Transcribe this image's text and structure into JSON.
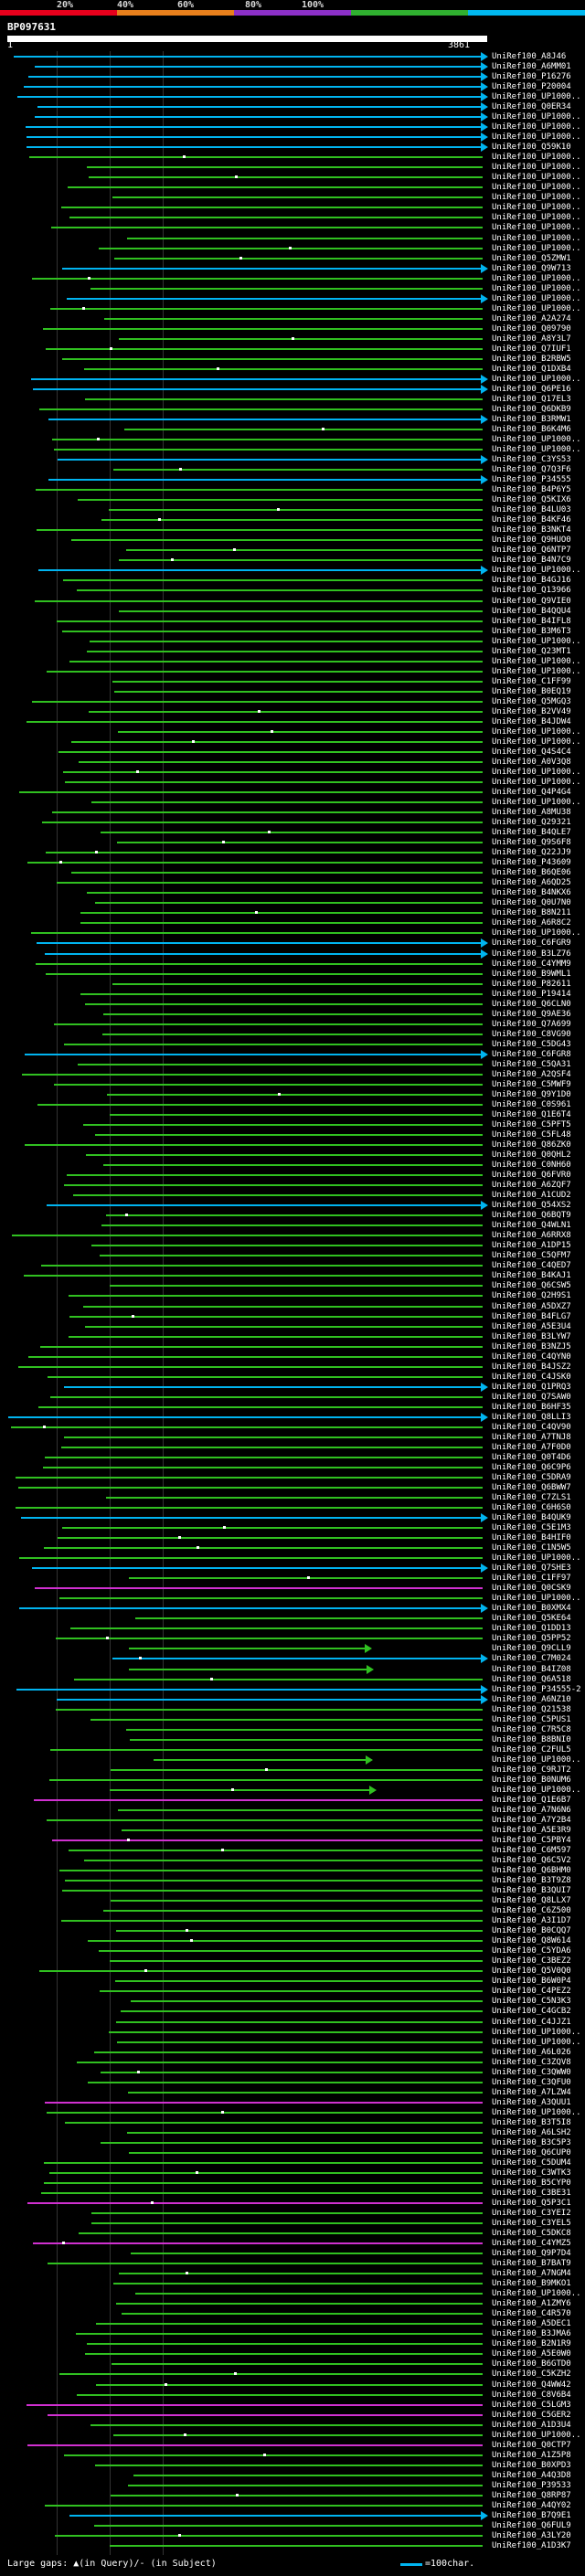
{
  "percent_scale": {
    "labels": [
      "20%",
      "40%",
      "60%",
      "80%",
      "100%"
    ],
    "colors": [
      "#e8001c",
      "#e8801c",
      "#8c30c8",
      "#30b030",
      "#00b8f0"
    ]
  },
  "query": {
    "id": "BP097631",
    "start": "1",
    "end": "3861"
  },
  "hits": [
    {
      "label": "UniRef100_A8J46",
      "kind": "top"
    },
    {
      "label": "UniRef100_A6MM01",
      "kind": "top"
    },
    {
      "label": "UniRef100_P16276",
      "kind": "top"
    },
    {
      "label": "UniRef100_P20004",
      "kind": "top"
    },
    {
      "label": "UniRef100_UP1000..",
      "kind": "top"
    },
    {
      "label": "UniRef100_Q0ER34",
      "kind": "top"
    },
    {
      "label": "UniRef100_UP1000..",
      "kind": "top"
    },
    {
      "label": "UniRef100_UP1000..",
      "kind": "top"
    },
    {
      "label": "UniRef100_UP1000..",
      "kind": "top"
    },
    {
      "label": "UniRef100_Q59K10",
      "kind": "top"
    },
    {
      "label": "UniRef100_UP1000..",
      "kind": "g"
    },
    {
      "label": "UniRef100_UP1000..",
      "kind": "g"
    },
    {
      "label": "UniRef100_UP1000..",
      "kind": "g"
    },
    {
      "label": "UniRef100_UP1000..",
      "kind": "g"
    },
    {
      "label": "UniRef100_UP1000..",
      "kind": "g"
    },
    {
      "label": "UniRef100_UP1000..",
      "kind": "g"
    },
    {
      "label": "UniRef100_UP1000..",
      "kind": "g"
    },
    {
      "label": "UniRef100_UP1000..",
      "kind": "g"
    },
    {
      "label": "UniRef100_UP1000..",
      "kind": "g"
    },
    {
      "label": "UniRef100_UP1000..",
      "kind": "g"
    },
    {
      "label": "UniRef100_Q5ZMW1",
      "kind": "g"
    },
    {
      "label": "UniRef100_Q9W713",
      "kind": "top"
    },
    {
      "label": "UniRef100_UP1000..",
      "kind": "g"
    },
    {
      "label": "UniRef100_UP1000..",
      "kind": "g"
    },
    {
      "label": "UniRef100_UP1000..",
      "kind": "top"
    },
    {
      "label": "UniRef100_UP1000..",
      "kind": "g"
    },
    {
      "label": "UniRef100_A2A274",
      "kind": "g"
    },
    {
      "label": "UniRef100_Q09790",
      "kind": "g"
    },
    {
      "label": "UniRef100_A8Y3L7",
      "kind": "g"
    },
    {
      "label": "UniRef100_Q7IUF1",
      "kind": "g"
    },
    {
      "label": "UniRef100_B2RBW5",
      "kind": "g"
    },
    {
      "label": "UniRef100_Q1DXB4",
      "kind": "g"
    },
    {
      "label": "UniRef100_UP1000..",
      "kind": "top"
    },
    {
      "label": "UniRef100_Q6PE16",
      "kind": "top"
    },
    {
      "label": "UniRef100_Q17EL3",
      "kind": "g"
    },
    {
      "label": "UniRef100_Q6DKB9",
      "kind": "g"
    },
    {
      "label": "UniRef100_B3RMW1",
      "kind": "top"
    },
    {
      "label": "UniRef100_B6K4M6",
      "kind": "g"
    },
    {
      "label": "UniRef100_UP1000..",
      "kind": "g"
    },
    {
      "label": "UniRef100_UP1000..",
      "kind": "g"
    },
    {
      "label": "UniRef100_C3YS53",
      "kind": "top"
    },
    {
      "label": "UniRef100_Q7Q3F6",
      "kind": "g"
    },
    {
      "label": "UniRef100_P34555",
      "kind": "top"
    },
    {
      "label": "UniRef100_B4P6Y5",
      "kind": "g"
    },
    {
      "label": "UniRef100_Q5KIX6",
      "kind": "g"
    },
    {
      "label": "UniRef100_B4LU03",
      "kind": "g"
    },
    {
      "label": "UniRef100_B4KF46",
      "kind": "g"
    },
    {
      "label": "UniRef100_B3NKT4",
      "kind": "g"
    },
    {
      "label": "UniRef100_Q9HUO0",
      "kind": "g"
    },
    {
      "label": "UniRef100_Q6NTP7",
      "kind": "g"
    },
    {
      "label": "UniRef100_B4N7C9",
      "kind": "g"
    },
    {
      "label": "UniRef100_UP1000..",
      "kind": "top"
    },
    {
      "label": "UniRef100_B4GJ16",
      "kind": "g"
    },
    {
      "label": "UniRef100_Q13966",
      "kind": "g"
    },
    {
      "label": "UniRef100_Q9VIE0",
      "kind": "g"
    },
    {
      "label": "UniRef100_B4QQU4",
      "kind": "g"
    },
    {
      "label": "UniRef100_B4IFL8",
      "kind": "g"
    },
    {
      "label": "UniRef100_B3M6T3",
      "kind": "g"
    },
    {
      "label": "UniRef100_UP1000..",
      "kind": "g"
    },
    {
      "label": "UniRef100_Q23MT1",
      "kind": "g"
    },
    {
      "label": "UniRef100_UP1000..",
      "kind": "g"
    },
    {
      "label": "UniRef100_UP1000..",
      "kind": "g"
    },
    {
      "label": "UniRef100_C1FF99",
      "kind": "g"
    },
    {
      "label": "UniRef100_B0EQ19",
      "kind": "g"
    },
    {
      "label": "UniRef100_Q5MGQ3",
      "kind": "g"
    },
    {
      "label": "UniRef100_B2VV49",
      "kind": "g"
    },
    {
      "label": "UniRef100_B4JDW4",
      "kind": "g"
    },
    {
      "label": "UniRef100_UP1000..",
      "kind": "g"
    },
    {
      "label": "UniRef100_UP1000..",
      "kind": "g"
    },
    {
      "label": "UniRef100_Q4S4C4",
      "kind": "g"
    },
    {
      "label": "UniRef100_A0V3Q8",
      "kind": "g"
    },
    {
      "label": "UniRef100_UP1000..",
      "kind": "g"
    },
    {
      "label": "UniRef100_UP1000..",
      "kind": "g"
    },
    {
      "label": "UniRef100_Q4P4G4",
      "kind": "g"
    },
    {
      "label": "UniRef100_UP1000..",
      "kind": "g"
    },
    {
      "label": "UniRef100_A8MU38",
      "kind": "g"
    },
    {
      "label": "UniRef100_Q29321",
      "kind": "g"
    },
    {
      "label": "UniRef100_B4QLE7",
      "kind": "g"
    },
    {
      "label": "UniRef100_Q9S6F8",
      "kind": "g"
    },
    {
      "label": "UniRef100_Q22JJ9",
      "kind": "g"
    },
    {
      "label": "UniRef100_P43609",
      "kind": "g"
    },
    {
      "label": "UniRef100_B6QE06",
      "kind": "g"
    },
    {
      "label": "UniRef100_A6QD25",
      "kind": "g"
    },
    {
      "label": "UniRef100_B4NKX6",
      "kind": "g"
    },
    {
      "label": "UniRef100_Q0U7N0",
      "kind": "g"
    },
    {
      "label": "UniRef100_B8N211",
      "kind": "g"
    },
    {
      "label": "UniRef100_A6R8C2",
      "kind": "g"
    },
    {
      "label": "UniRef100_UP1000..",
      "kind": "g"
    },
    {
      "label": "UniRef100_C6FGR9",
      "kind": "top"
    },
    {
      "label": "UniRef100_B3LZ76",
      "kind": "top"
    },
    {
      "label": "UniRef100_C4YMM9",
      "kind": "g"
    },
    {
      "label": "UniRef100_B9WML1",
      "kind": "g"
    },
    {
      "label": "UniRef100_P82611",
      "kind": "g"
    },
    {
      "label": "UniRef100_P19414",
      "kind": "g"
    },
    {
      "label": "UniRef100_Q6CLN0",
      "kind": "g"
    },
    {
      "label": "UniRef100_Q9AE36",
      "kind": "g"
    },
    {
      "label": "UniRef100_Q7A699",
      "kind": "g"
    },
    {
      "label": "UniRef100_C8VG90",
      "kind": "g"
    },
    {
      "label": "UniRef100_C5DG43",
      "kind": "g"
    },
    {
      "label": "UniRef100_C6FGR8",
      "kind": "top"
    },
    {
      "label": "UniRef100_C5QA31",
      "kind": "g"
    },
    {
      "label": "UniRef100_A2QSF4",
      "kind": "g"
    },
    {
      "label": "UniRef100_C5MWF9",
      "kind": "g"
    },
    {
      "label": "UniRef100_Q9Y1D0",
      "kind": "g"
    },
    {
      "label": "UniRef100_C0S961",
      "kind": "g"
    },
    {
      "label": "UniRef100_Q1E6T4",
      "kind": "g"
    },
    {
      "label": "UniRef100_C5PFT5",
      "kind": "g"
    },
    {
      "label": "UniRef100_C5FL48",
      "kind": "g"
    },
    {
      "label": "UniRef100_Q86ZK0",
      "kind": "g"
    },
    {
      "label": "UniRef100_Q0QHL2",
      "kind": "g"
    },
    {
      "label": "UniRef100_C0NH60",
      "kind": "g"
    },
    {
      "label": "UniRef100_Q6FVR0",
      "kind": "g"
    },
    {
      "label": "UniRef100_A6ZQF7",
      "kind": "g"
    },
    {
      "label": "UniRef100_A1CUD2",
      "kind": "g"
    },
    {
      "label": "UniRef100_Q54XS2",
      "kind": "top"
    },
    {
      "label": "UniRef100_Q6BQT9",
      "kind": "g"
    },
    {
      "label": "UniRef100_Q4WLN1",
      "kind": "g"
    },
    {
      "label": "UniRef100_A6RRX8",
      "kind": "g"
    },
    {
      "label": "UniRef100_A1DP15",
      "kind": "g"
    },
    {
      "label": "UniRef100_C5QFM7",
      "kind": "g"
    },
    {
      "label": "UniRef100_C4QED7",
      "kind": "g"
    },
    {
      "label": "UniRef100_B4KAJ1",
      "kind": "g"
    },
    {
      "label": "UniRef100_Q6CSW5",
      "kind": "g"
    },
    {
      "label": "UniRef100_Q2H9S1",
      "kind": "g"
    },
    {
      "label": "UniRef100_A5DXZ7",
      "kind": "g"
    },
    {
      "label": "UniRef100_B4FLG7",
      "kind": "g"
    },
    {
      "label": "UniRef100_A5E3U4",
      "kind": "g"
    },
    {
      "label": "UniRef100_B3LYW7",
      "kind": "g"
    },
    {
      "label": "UniRef100_B3NZJ5",
      "kind": "g"
    },
    {
      "label": "UniRef100_C4QYN0",
      "kind": "g"
    },
    {
      "label": "UniRef100_B4JSZ2",
      "kind": "g"
    },
    {
      "label": "UniRef100_C4JSK0",
      "kind": "g"
    },
    {
      "label": "UniRef100_Q1PRQ3",
      "kind": "top"
    },
    {
      "label": "UniRef100_Q7SAW0",
      "kind": "g"
    },
    {
      "label": "UniRef100_B6HF35",
      "kind": "g"
    },
    {
      "label": "UniRef100_Q8LLI3",
      "kind": "top"
    },
    {
      "label": "UniRef100_C4QV90",
      "kind": "g"
    },
    {
      "label": "UniRef100_A7TNJ8",
      "kind": "g"
    },
    {
      "label": "UniRef100_A7F0D0",
      "kind": "g"
    },
    {
      "label": "UniRef100_Q0T4D6",
      "kind": "g"
    },
    {
      "label": "UniRef100_Q6C9P6",
      "kind": "g"
    },
    {
      "label": "UniRef100_C5DRA9",
      "kind": "g"
    },
    {
      "label": "UniRef100_Q6BWW7",
      "kind": "g"
    },
    {
      "label": "UniRef100_C7ZLS1",
      "kind": "g"
    },
    {
      "label": "UniRef100_C6H6S0",
      "kind": "g"
    },
    {
      "label": "UniRef100_B4QUK9",
      "kind": "top"
    },
    {
      "label": "UniRef100_C5E1M3",
      "kind": "g"
    },
    {
      "label": "UniRef100_B4HIF0",
      "kind": "g"
    },
    {
      "label": "UniRef100_C1N5W5",
      "kind": "g"
    },
    {
      "label": "UniRef100_UP1000..",
      "kind": "g"
    },
    {
      "label": "UniRef100_Q7SHE3",
      "kind": "top"
    },
    {
      "label": "UniRef100_C1FF97",
      "kind": "g"
    },
    {
      "label": "UniRef100_Q0CSK9",
      "kind": "magenta"
    },
    {
      "label": "UniRef100_UP1000..",
      "kind": "g"
    },
    {
      "label": "UniRef100_B0XMX4",
      "kind": "top"
    },
    {
      "label": "UniRef100_Q5KE64",
      "kind": "g"
    },
    {
      "label": "UniRef100_Q1DD13",
      "kind": "g"
    },
    {
      "label": "UniRef100_Q5PP52",
      "kind": "g"
    },
    {
      "label": "UniRef100_Q9CLL9",
      "kind": "short"
    },
    {
      "label": "UniRef100_C7M024",
      "kind": "top2"
    },
    {
      "label": "UniRef100_B4IZ08",
      "kind": "short"
    },
    {
      "label": "UniRef100_Q6A518",
      "kind": "g"
    },
    {
      "label": "UniRef100_P34555-2",
      "kind": "top"
    },
    {
      "label": "UniRef100_A6NZ10",
      "kind": "top"
    },
    {
      "label": "UniRef100_Q21538",
      "kind": "g"
    },
    {
      "label": "UniRef100_C5PUS1",
      "kind": "g"
    },
    {
      "label": "UniRef100_C7R5C8",
      "kind": "g"
    },
    {
      "label": "UniRef100_B8BNI0",
      "kind": "g"
    },
    {
      "label": "UniRef100_C2FUL5",
      "kind": "g"
    },
    {
      "label": "UniRef100_UP1000..",
      "kind": "short"
    },
    {
      "label": "UniRef100_C9RJT2",
      "kind": "g"
    },
    {
      "label": "UniRef100_B0NUM6",
      "kind": "g"
    },
    {
      "label": "UniRef100_UP1000..",
      "kind": "short"
    },
    {
      "label": "UniRef100_Q1E6B7",
      "kind": "magenta"
    },
    {
      "label": "UniRef100_A7N6N6",
      "kind": "g"
    },
    {
      "label": "UniRef100_A7Y2B4",
      "kind": "g"
    },
    {
      "label": "UniRef100_A5E3R9",
      "kind": "g"
    },
    {
      "label": "UniRef100_C5PBY4",
      "kind": "magenta"
    },
    {
      "label": "UniRef100_C6M597",
      "kind": "g"
    },
    {
      "label": "UniRef100_Q6C5V2",
      "kind": "g"
    },
    {
      "label": "UniRef100_Q6BHM0",
      "kind": "g"
    },
    {
      "label": "UniRef100_B3T9Z8",
      "kind": "g"
    },
    {
      "label": "UniRef100_B3QUI7",
      "kind": "g"
    },
    {
      "label": "UniRef100_Q8LLX7",
      "kind": "g"
    },
    {
      "label": "UniRef100_C6Z500",
      "kind": "g"
    },
    {
      "label": "UniRef100_A3I1D7",
      "kind": "g"
    },
    {
      "label": "UniRef100_B0CQQ7",
      "kind": "g"
    },
    {
      "label": "UniRef100_Q8W614",
      "kind": "g"
    },
    {
      "label": "UniRef100_C5YDA6",
      "kind": "g"
    },
    {
      "label": "UniRef100_C3BEZ2",
      "kind": "g"
    },
    {
      "label": "UniRef100_Q5V0Q0",
      "kind": "g"
    },
    {
      "label": "UniRef100_B6W0P4",
      "kind": "g"
    },
    {
      "label": "UniRef100_C4PEZ2",
      "kind": "g"
    },
    {
      "label": "UniRef100_C5N3K3",
      "kind": "g"
    },
    {
      "label": "UniRef100_C4GCB2",
      "kind": "g"
    },
    {
      "label": "UniRef100_C4JJZ1",
      "kind": "g"
    },
    {
      "label": "UniRef100_UP1000..",
      "kind": "g"
    },
    {
      "label": "UniRef100_UP1000..",
      "kind": "g"
    },
    {
      "label": "UniRef100_A6L026",
      "kind": "g"
    },
    {
      "label": "UniRef100_C3ZQV8",
      "kind": "g"
    },
    {
      "label": "UniRef100_C3QWW0",
      "kind": "g"
    },
    {
      "label": "UniRef100_C3QFU0",
      "kind": "g"
    },
    {
      "label": "UniRef100_A7LZW4",
      "kind": "g"
    },
    {
      "label": "UniRef100_A3QUU1",
      "kind": "magenta"
    },
    {
      "label": "UniRef100_UP1000..",
      "kind": "g"
    },
    {
      "label": "UniRef100_B3T5I8",
      "kind": "g"
    },
    {
      "label": "UniRef100_A6LSH2",
      "kind": "g"
    },
    {
      "label": "UniRef100_B3C5P3",
      "kind": "g"
    },
    {
      "label": "UniRef100_Q6CUP0",
      "kind": "g"
    },
    {
      "label": "UniRef100_C5DUM4",
      "kind": "g"
    },
    {
      "label": "UniRef100_C3WTK3",
      "kind": "g"
    },
    {
      "label": "UniRef100_B5CYP0",
      "kind": "g"
    },
    {
      "label": "UniRef100_C3BE31",
      "kind": "g"
    },
    {
      "label": "UniRef100_Q5P3C1",
      "kind": "magenta"
    },
    {
      "label": "UniRef100_C3YEI2",
      "kind": "g"
    },
    {
      "label": "UniRef100_C3YEL5",
      "kind": "g"
    },
    {
      "label": "UniRef100_C5DKC8",
      "kind": "g"
    },
    {
      "label": "UniRef100_C4YMZ5",
      "kind": "magenta"
    },
    {
      "label": "UniRef100_Q9P7D4",
      "kind": "g"
    },
    {
      "label": "UniRef100_B7BAT9",
      "kind": "g"
    },
    {
      "label": "UniRef100_A7NGM4",
      "kind": "g"
    },
    {
      "label": "UniRef100_B9MKO1",
      "kind": "g"
    },
    {
      "label": "UniRef100_UP1000..",
      "kind": "g"
    },
    {
      "label": "UniRef100_A1ZMY6",
      "kind": "g"
    },
    {
      "label": "UniRef100_C4R570",
      "kind": "g"
    },
    {
      "label": "UniRef100_A5DEC1",
      "kind": "g"
    },
    {
      "label": "UniRef100_B3JMA6",
      "kind": "g"
    },
    {
      "label": "UniRef100_B2N1R9",
      "kind": "g"
    },
    {
      "label": "UniRef100_A5E0W0",
      "kind": "g"
    },
    {
      "label": "UniRef100_B6GTD0",
      "kind": "g"
    },
    {
      "label": "UniRef100_C5KZH2",
      "kind": "g"
    },
    {
      "label": "UniRef100_Q4WW42",
      "kind": "g"
    },
    {
      "label": "UniRef100_C8V6B4",
      "kind": "g"
    },
    {
      "label": "UniRef100_C5LGM3",
      "kind": "magenta"
    },
    {
      "label": "UniRef100_C5GER2",
      "kind": "magenta"
    },
    {
      "label": "UniRef100_A1D3U4",
      "kind": "g"
    },
    {
      "label": "UniRef100_UP1000..",
      "kind": "g"
    },
    {
      "label": "UniRef100_Q0CTP7",
      "kind": "magenta"
    },
    {
      "label": "UniRef100_A1Z5P8",
      "kind": "g"
    },
    {
      "label": "UniRef100_B0XPD3",
      "kind": "g"
    },
    {
      "label": "UniRef100_A4Q3D8",
      "kind": "g"
    },
    {
      "label": "UniRef100_P39533",
      "kind": "g"
    },
    {
      "label": "UniRef100_Q8RP87",
      "kind": "g"
    },
    {
      "label": "UniRef100_A4QY02",
      "kind": "g"
    },
    {
      "label": "UniRef100_B7Q9E1",
      "kind": "top"
    },
    {
      "label": "UniRef100_Q6FUL9",
      "kind": "g"
    },
    {
      "label": "UniRef100_A3LY20",
      "kind": "g"
    },
    {
      "label": "UniRef100_A1D3K7",
      "kind": "g"
    }
  ],
  "legend": {
    "gaps_text": "Large gaps: ▲(in Query)/- (in Subject)",
    "scale_text": "=100char."
  },
  "colors": {
    "green": "#30c020",
    "cyan": "#00b4f0",
    "magenta": "#d030d0"
  }
}
